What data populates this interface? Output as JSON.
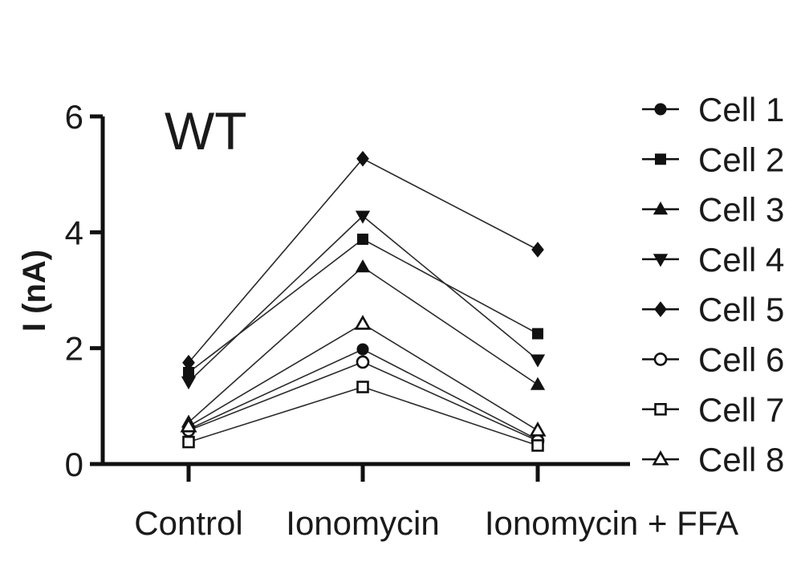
{
  "chart_data": {
    "type": "line",
    "title": "WT",
    "xlabel": "",
    "ylabel": "I (nA)",
    "categories": [
      "Control",
      "Ionomycin",
      "Ionomycin + FFA"
    ],
    "ylim": [
      0,
      6
    ],
    "yticks": [
      "0",
      "2",
      "4",
      "6"
    ],
    "grid": false,
    "legend_position": "right",
    "series": [
      {
        "name": "Cell 1",
        "marker": "circle-filled",
        "values": [
          0.6,
          1.98,
          0.42
        ]
      },
      {
        "name": "Cell 2",
        "marker": "square-filled",
        "values": [
          1.58,
          3.88,
          2.25
        ]
      },
      {
        "name": "Cell 3",
        "marker": "triangle-up-filled",
        "values": [
          0.72,
          3.4,
          1.37
        ]
      },
      {
        "name": "Cell 4",
        "marker": "triangle-down-filled",
        "values": [
          1.42,
          4.28,
          1.8
        ]
      },
      {
        "name": "Cell 5",
        "marker": "diamond-filled",
        "values": [
          1.75,
          5.27,
          3.7
        ]
      },
      {
        "name": "Cell 6",
        "marker": "circle-open",
        "values": [
          0.58,
          1.76,
          0.4
        ]
      },
      {
        "name": "Cell 7",
        "marker": "square-open",
        "values": [
          0.38,
          1.33,
          0.32
        ]
      },
      {
        "name": "Cell 8",
        "marker": "triangle-up-open",
        "values": [
          0.65,
          2.42,
          0.58
        ]
      }
    ]
  }
}
